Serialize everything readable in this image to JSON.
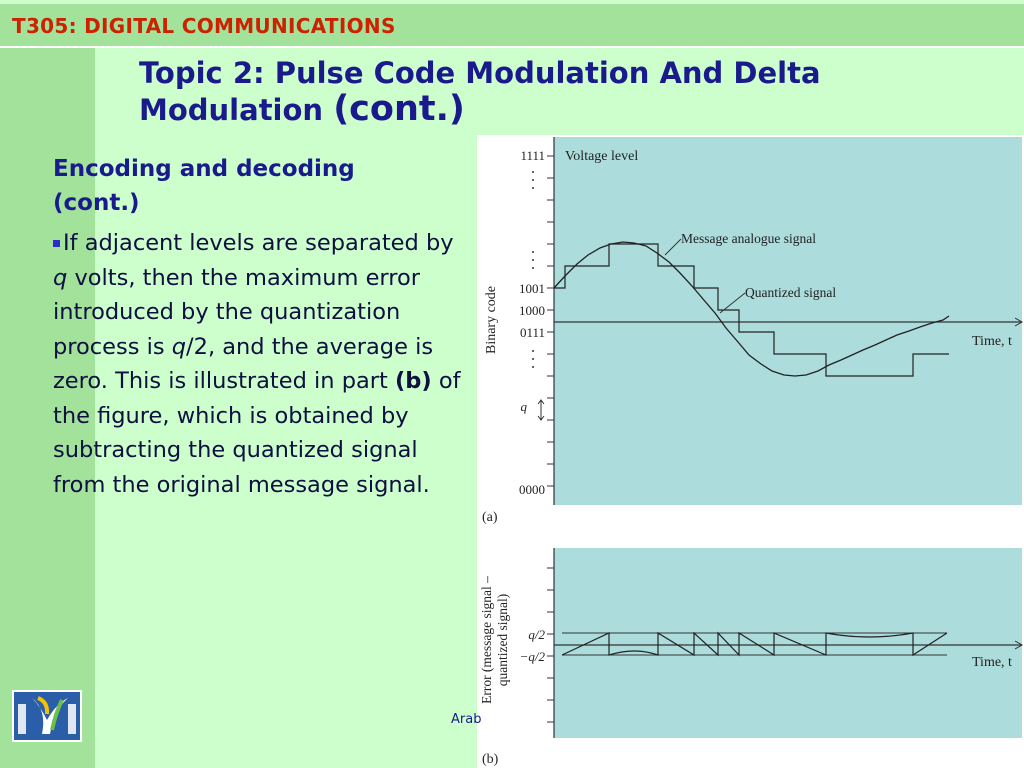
{
  "header": {
    "course_title": "T305: DIGITAL COMMUNICATIONS"
  },
  "slide": {
    "title_main": "Topic 2: Pulse Code Modulation And Delta Modulation",
    "title_cont": "(cont.)",
    "subheading_line1": "Encoding and decoding",
    "subheading_line2": "(cont.)",
    "body": {
      "part1": "If adjacent levels are separated by ",
      "q1": "q",
      "part2": " volts, then the maximum error introduced by the quantization process is ",
      "q2": "q",
      "part3": "/2, and the average is zero. This is illustrated in part ",
      "b_label": "(b)",
      "part4": " of the figure, which is obtained by subtracting the quantized signal from the original message signal."
    }
  },
  "figure": {
    "panel_a": {
      "label": "(a)",
      "y_axis_title": "Binary code",
      "tick_labels": [
        "1111",
        "1001",
        "1000",
        "0111",
        "0000"
      ],
      "q_label": "q",
      "voltage_label": "Voltage level",
      "message_label": "Message analogue signal",
      "quantized_label": "Quantized signal",
      "time_label": "Time, t"
    },
    "panel_b": {
      "label": "(b)",
      "y_axis_title_line1": "Error (message signal –",
      "y_axis_title_line2": "quantized signal)",
      "pos_label": "q/2",
      "neg_label": "−q/2",
      "time_label": "Time, t"
    }
  },
  "footer": {
    "text": "Arab"
  },
  "colors": {
    "plot_bg": "#acdcdc",
    "title": "#1a1a8c",
    "course": "#cc2200"
  }
}
